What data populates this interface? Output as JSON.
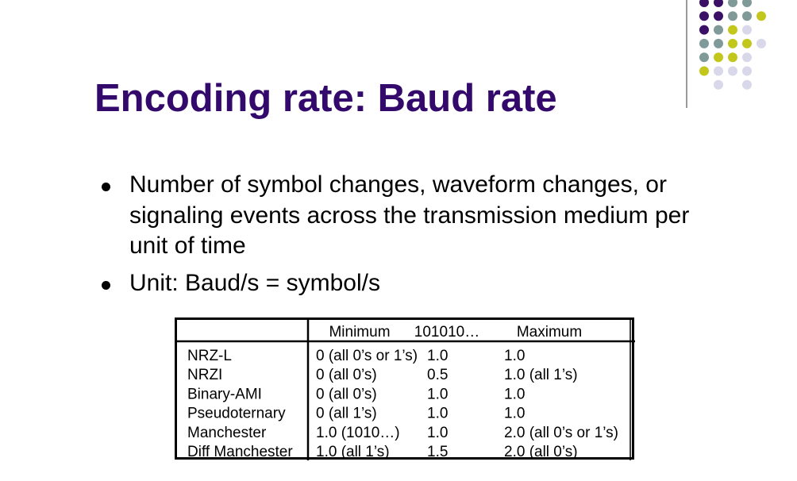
{
  "slide": {
    "title": "Encoding rate: Baud rate",
    "bullets": [
      "Number of symbol changes, waveform changes, or signaling events across the transmission medium per unit of time",
      "Unit: Baud/s = symbol/s"
    ]
  },
  "decoration": {
    "dot_colors": [
      "#3a1066",
      "#7f9a98",
      "#c3c71c",
      "#d9d8ea"
    ],
    "title_color": "#33096b"
  },
  "table": {
    "headers": [
      "",
      "Minimum",
      "101010…",
      "Maximum"
    ],
    "rows": [
      [
        "NRZ-L",
        "0 (all 0’s or 1’s)",
        "1.0",
        "1.0"
      ],
      [
        "NRZI",
        "0 (all 0’s)",
        "0.5",
        "1.0 (all 1’s)"
      ],
      [
        "Binary-AMI",
        "0 (all 0’s)",
        "1.0",
        "1.0"
      ],
      [
        "Pseudoternary",
        "0 (all 1’s)",
        "1.0",
        "1.0"
      ],
      [
        "Manchester",
        "1.0 (1010…)",
        "1.0",
        "2.0 (all 0’s or 1’s)"
      ],
      [
        "Diff Manchester",
        "1.0 (all 1’s)",
        "1.5",
        "2.0 (all 0’s)"
      ]
    ]
  }
}
